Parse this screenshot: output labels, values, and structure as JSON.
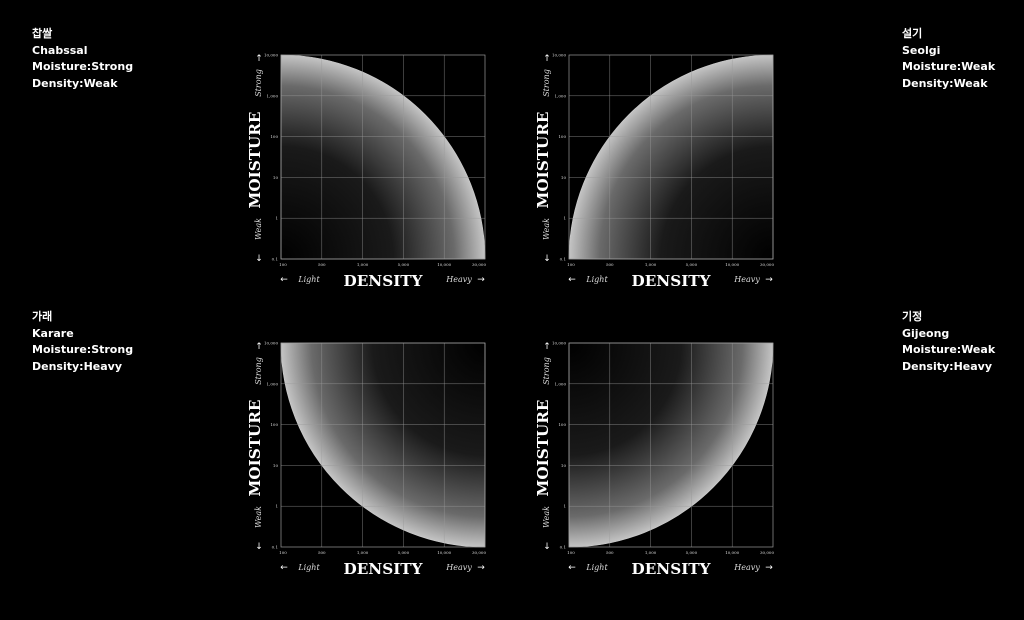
{
  "axes": {
    "y_title": "MOISTURE",
    "x_title": "DENSITY",
    "y_strong": "Strong",
    "y_weak": "Weak",
    "x_light": "Light",
    "x_heavy": "Heavy",
    "up_arrow": "↑",
    "down_arrow": "↓",
    "left_arrow": "←",
    "right_arrow": "→",
    "y_ticks": [
      "0.1",
      "1",
      "10",
      "100",
      "1,000",
      "10,000"
    ],
    "x_ticks": [
      "100",
      "500",
      "1,000",
      "5,000",
      "10,000",
      "30,000"
    ]
  },
  "rice_types": [
    {
      "korean": "찹쌀",
      "name": "Chabssal",
      "moisture": "Moisture:Strong",
      "density": "Density:Weak",
      "arc_center": "bottom-left"
    },
    {
      "korean": "설기",
      "name": "Seolgi",
      "moisture": "Moisture:Weak",
      "density": "Density:Weak",
      "arc_center": "bottom-right"
    },
    {
      "korean": "가래",
      "name": "Karare",
      "moisture": "Moisture:Strong",
      "density": "Density:Heavy",
      "arc_center": "top-right"
    },
    {
      "korean": "기정",
      "name": "Gijeong",
      "moisture": "Moisture:Weak",
      "density": "Density:Heavy",
      "arc_center": "top-left"
    }
  ],
  "colors": {
    "background": "#000000",
    "grid": "#9a9a9a",
    "arc_edge": "#cfcfcf",
    "text": "#ffffff"
  }
}
